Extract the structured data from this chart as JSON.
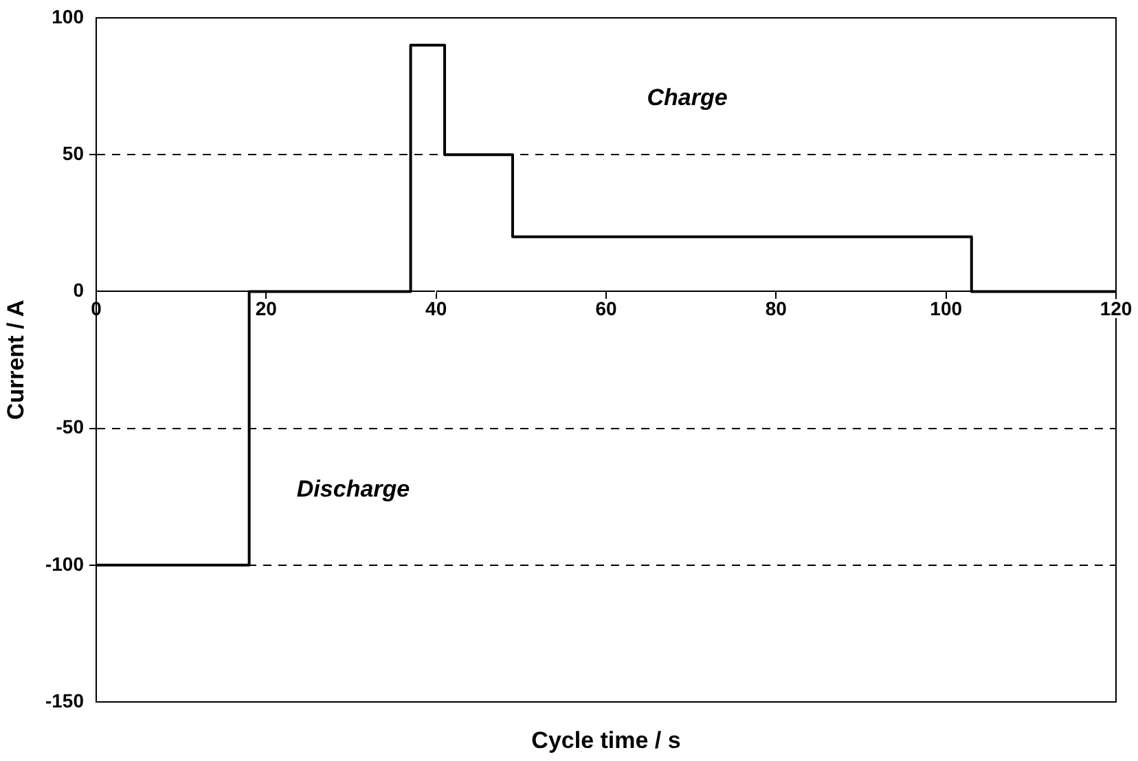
{
  "chart_data": {
    "type": "step",
    "xlabel": "Cycle time / s",
    "ylabel": "Current / A",
    "x": [
      0,
      18,
      37,
      41,
      49,
      103,
      120
    ],
    "series": [
      {
        "color": "#000000",
        "values": [
          -100,
          0,
          90,
          50,
          20,
          0,
          0
        ]
      }
    ],
    "xlim": [
      0,
      120
    ],
    "xticks": [
      0,
      20,
      40,
      60,
      80,
      100,
      120
    ],
    "ylim": [
      -150,
      100
    ],
    "yticks": [
      -150,
      -100,
      -50,
      0,
      50,
      100
    ],
    "grid": "y",
    "legend": false,
    "marker": "none",
    "line_style": "solid",
    "annotations": [
      "Charge",
      "Discharge"
    ]
  }
}
